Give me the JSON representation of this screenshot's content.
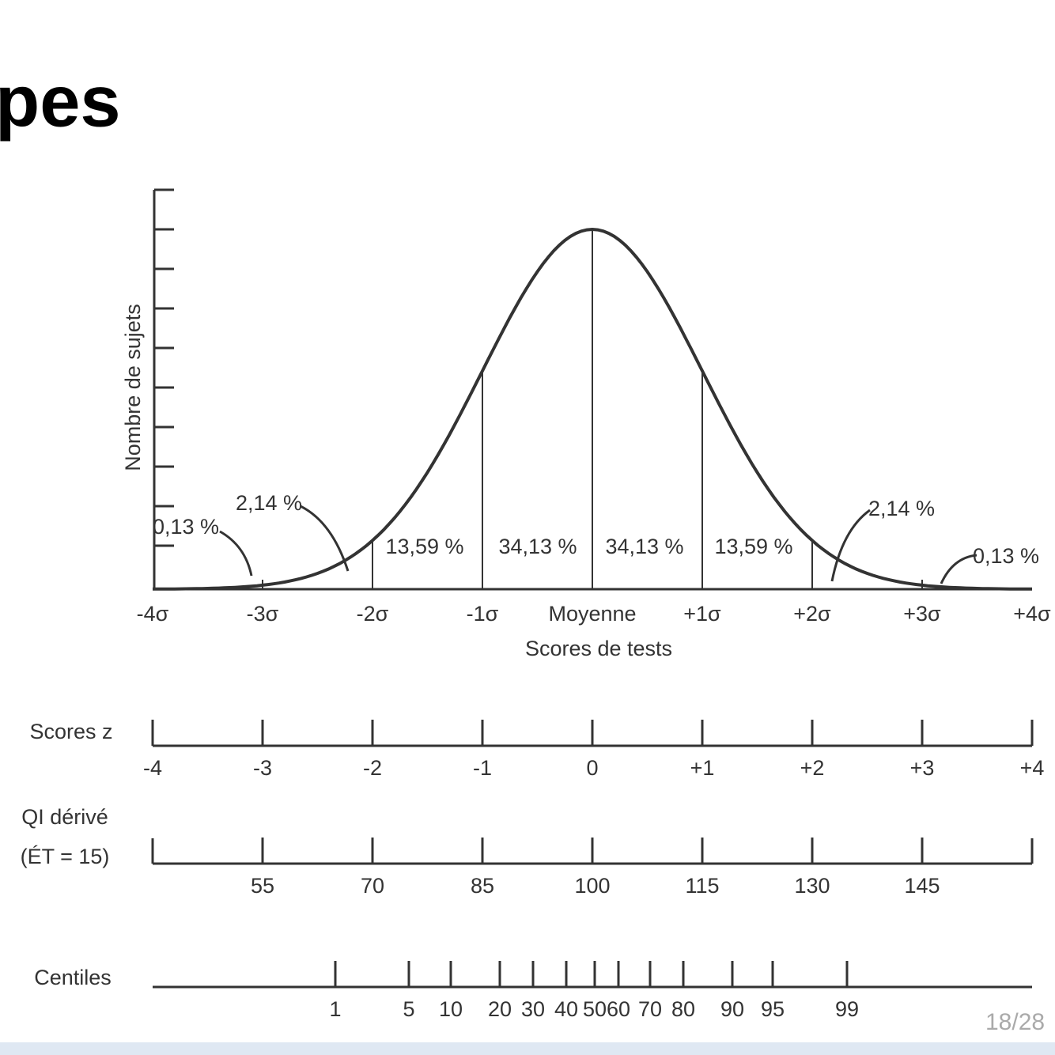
{
  "title": "pes",
  "page_number": "18/28",
  "curve": {
    "y_label": "Nombre de sujets",
    "x_label": "Scores de tests",
    "x_ticks": [
      "-4σ",
      "-3σ",
      "-2σ",
      "-1σ",
      "Moyenne",
      "+1σ",
      "+2σ",
      "+3σ",
      "+4σ"
    ],
    "regions": [
      "0,13 %",
      "2,14 %",
      "13,59 %",
      "34,13 %",
      "34,13 %",
      "13,59 %",
      "2,14 %",
      "0,13 %"
    ]
  },
  "scales": [
    {
      "label": "Scores z",
      "ticks": [
        "-4",
        "-3",
        "-2",
        "-1",
        "0",
        "+1",
        "+2",
        "+3",
        "+4"
      ]
    },
    {
      "label": "QI dérivé",
      "sublabel": "(ÉT = 15)",
      "ticks": [
        "55",
        "70",
        "85",
        "100",
        "115",
        "130",
        "145"
      ]
    },
    {
      "label": "Centiles",
      "ticks": [
        "1",
        "5",
        "10",
        "20",
        "30",
        "40",
        "50",
        "60",
        "70",
        "80",
        "90",
        "95",
        "99"
      ]
    }
  ]
}
